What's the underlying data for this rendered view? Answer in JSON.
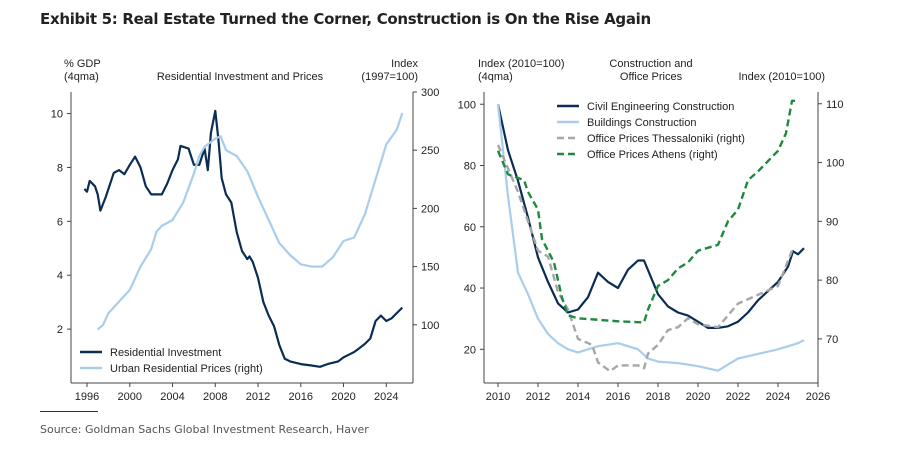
{
  "title": "Exhibit 5: Real Estate Turned the Corner, Construction is On the Rise Again",
  "source": "Source: Goldman Sachs Global Investment Research, Haver",
  "chart_data": [
    {
      "type": "line",
      "title": "Residential Investment and Prices",
      "ylabel_left": [
        "% GDP",
        "(4qma)"
      ],
      "ylabel_right": [
        "Index",
        "(1997=100)"
      ],
      "xlim": [
        1994.5,
        2026.5
      ],
      "ylim_left": [
        0,
        10.8
      ],
      "ylim_right": [
        50,
        300
      ],
      "xticks": [
        1996,
        2000,
        2004,
        2008,
        2012,
        2016,
        2020,
        2024
      ],
      "yticks_left": [
        2,
        4,
        6,
        8,
        10
      ],
      "yticks_right": [
        100,
        150,
        200,
        250,
        300
      ],
      "legend": "bottom-left",
      "series": [
        {
          "name": "Residential Investment",
          "axis": "left",
          "color": "#0b2d55",
          "style": "solid",
          "x": [
            1995.75,
            1996,
            1996.25,
            1996.75,
            1997,
            1997.25,
            1997.75,
            1998.5,
            1999,
            1999.5,
            2000,
            2000.5,
            2001,
            2001.5,
            2002,
            2002.5,
            2003,
            2003.5,
            2004,
            2004.5,
            2004.75,
            2005.5,
            2006,
            2006.5,
            2007,
            2007.3,
            2007.6,
            2008,
            2008.3,
            2008.6,
            2009,
            2009.5,
            2010,
            2010.5,
            2011,
            2011.2,
            2011.5,
            2012,
            2012.5,
            2013,
            2013.5,
            2014,
            2014.5,
            2015,
            2016,
            2017,
            2017.8,
            2018.5,
            2019.5,
            2020,
            2020.5,
            2021,
            2021.5,
            2022,
            2022.5,
            2023,
            2023.5,
            2024,
            2024.5,
            2025,
            2025.5
          ],
          "y": [
            7.2,
            7.1,
            7.5,
            7.3,
            7.0,
            6.4,
            6.9,
            7.8,
            7.9,
            7.75,
            8.1,
            8.4,
            8.0,
            7.3,
            7.0,
            7.0,
            7.0,
            7.4,
            7.9,
            8.3,
            8.8,
            8.7,
            8.1,
            8.1,
            8.7,
            7.9,
            9.3,
            10.1,
            9.0,
            7.6,
            7.0,
            6.7,
            5.6,
            4.9,
            4.6,
            4.7,
            4.5,
            3.9,
            3.0,
            2.5,
            2.1,
            1.4,
            0.9,
            0.8,
            0.7,
            0.65,
            0.6,
            0.7,
            0.8,
            0.95,
            1.05,
            1.15,
            1.3,
            1.45,
            1.65,
            2.3,
            2.5,
            2.3,
            2.4,
            2.6,
            2.8
          ]
        },
        {
          "name": "Urban Residential Prices (right)",
          "axis": "right",
          "color": "#a9cdec",
          "style": "solid",
          "x": [
            1997,
            1997.5,
            1998,
            1999,
            2000,
            2001,
            2002,
            2002.5,
            2003,
            2004,
            2005,
            2006,
            2006.5,
            2007,
            2008,
            2008.5,
            2009,
            2010,
            2011,
            2012,
            2013,
            2014,
            2015,
            2016,
            2017,
            2018,
            2019,
            2020,
            2021,
            2022,
            2023,
            2024,
            2025,
            2025.5
          ],
          "y": [
            96,
            100,
            110,
            120,
            130,
            150,
            165,
            180,
            185,
            190,
            205,
            230,
            245,
            253,
            260,
            262,
            250,
            245,
            232,
            210,
            190,
            170,
            160,
            152,
            150,
            150,
            158,
            172,
            175,
            195,
            225,
            255,
            268,
            282
          ]
        }
      ]
    },
    {
      "type": "line",
      "title": "Construction and Office Prices",
      "title_lines": [
        "Construction and",
        "Office Prices"
      ],
      "ylabel_left": [
        "Index (2010=100)",
        "(4qma)"
      ],
      "ylabel_right": [
        "Index (2010=100)"
      ],
      "xlim": [
        2009.3,
        2026
      ],
      "ylim_left": [
        9,
        104
      ],
      "ylim_right": [
        62.5,
        112
      ],
      "xticks": [
        2010,
        2012,
        2014,
        2016,
        2018,
        2020,
        2022,
        2024,
        2026
      ],
      "yticks_left": [
        20,
        40,
        60,
        80,
        100
      ],
      "yticks_right": [
        70,
        80,
        90,
        100,
        110
      ],
      "legend": "top-center",
      "series": [
        {
          "name": "Civil Engineering Construction",
          "axis": "left",
          "color": "#0b2d55",
          "style": "solid",
          "x": [
            2010,
            2010.5,
            2011,
            2011.5,
            2012,
            2012.5,
            2013,
            2013.5,
            2014,
            2014.5,
            2015,
            2015.5,
            2016,
            2016.5,
            2017,
            2017.3,
            2018,
            2018.5,
            2019,
            2019.5,
            2020,
            2020.5,
            2021,
            2021.5,
            2022,
            2022.5,
            2023,
            2023.5,
            2024,
            2024.5,
            2024.75,
            2025,
            2025.3
          ],
          "y": [
            100,
            85,
            75,
            63,
            50,
            42,
            35,
            32,
            33,
            37,
            45,
            42,
            40,
            46,
            49,
            49,
            38,
            34,
            32,
            31,
            29,
            27,
            27,
            27.5,
            29,
            32,
            36,
            39,
            42,
            47,
            52,
            51,
            53
          ]
        },
        {
          "name": "Buildings Construction",
          "axis": "left",
          "color": "#a9cdec",
          "style": "solid",
          "x": [
            2010,
            2010.5,
            2011,
            2011.5,
            2012,
            2012.5,
            2013,
            2013.5,
            2014,
            2015,
            2016,
            2016.5,
            2017,
            2017.5,
            2018,
            2019,
            2020,
            2021,
            2021.5,
            2022,
            2023,
            2024,
            2025,
            2025.3
          ],
          "y": [
            100,
            70,
            45,
            38,
            30,
            25,
            22,
            20,
            19,
            21,
            22,
            21,
            20,
            17,
            16,
            15.5,
            14.5,
            13,
            15,
            17,
            18.5,
            20,
            22,
            23
          ]
        },
        {
          "name": "Office Prices Thessaloniki (right)",
          "axis": "right",
          "color": "#a6a6a6",
          "style": "dashed",
          "x": [
            2010,
            2010.5,
            2011,
            2011.5,
            2012,
            2012.5,
            2013,
            2013.5,
            2014,
            2014.7,
            2015,
            2015.6,
            2016,
            2017,
            2017.3,
            2017.5,
            2018,
            2018.5,
            2019,
            2019.5,
            2020,
            2021,
            2022,
            2023,
            2024,
            2024.7
          ],
          "y": [
            103,
            99,
            95,
            90,
            85,
            84,
            78,
            75,
            70,
            69,
            66,
            64.5,
            65.5,
            65.5,
            65,
            67.5,
            69,
            71.5,
            72,
            73.5,
            72.5,
            72,
            76,
            77.5,
            79,
            85
          ]
        },
        {
          "name": "Office Prices Athens (right)",
          "axis": "right",
          "color": "#1e8a3e",
          "style": "dashed",
          "x": [
            2010,
            2010.5,
            2011.3,
            2011.5,
            2012,
            2012.2,
            2012.8,
            2013.2,
            2013.5,
            2014,
            2016,
            2017.3,
            2017.5,
            2018,
            2018.5,
            2019,
            2019.5,
            2020,
            2021,
            2021.5,
            2022,
            2022.5,
            2023,
            2024,
            2024.4,
            2024.7,
            2025
          ],
          "y": [
            102,
            98,
            97,
            95,
            92,
            87,
            83,
            77,
            74,
            73.5,
            73,
            72.8,
            75,
            79,
            80,
            82,
            83,
            85,
            86,
            90,
            92,
            97,
            98.5,
            102,
            105,
            110.5,
            110.5
          ]
        }
      ]
    }
  ]
}
